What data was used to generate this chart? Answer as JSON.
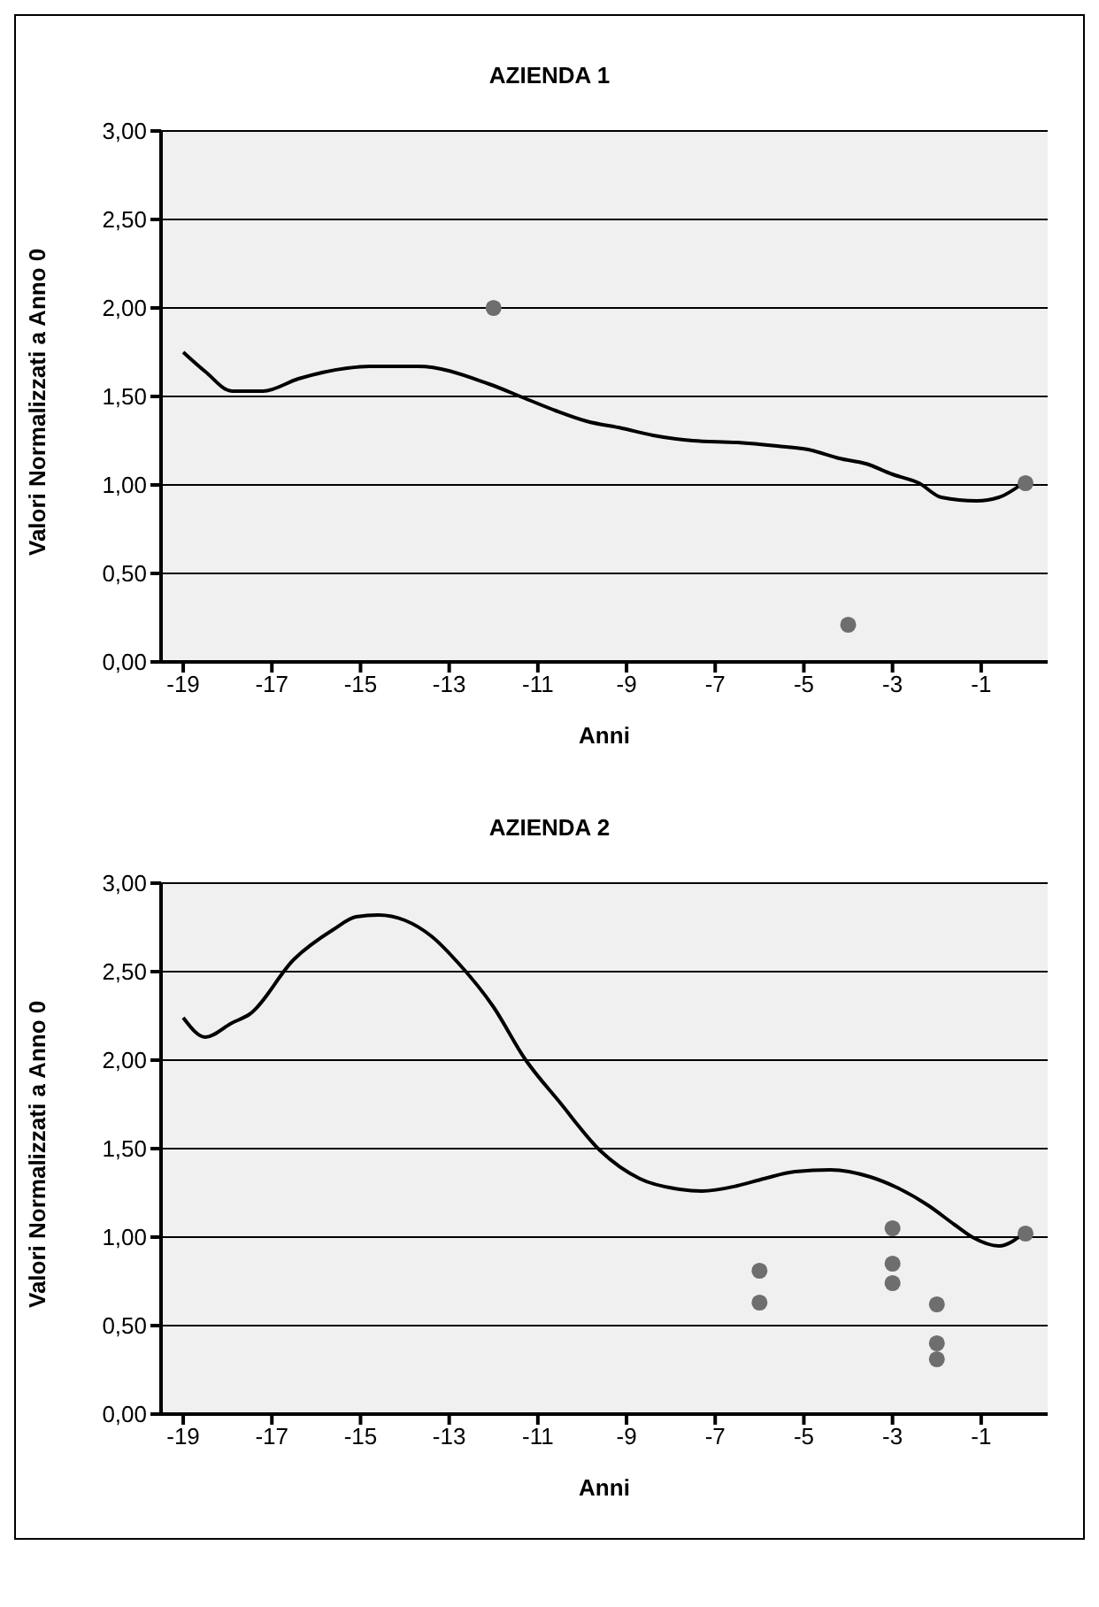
{
  "chart_data": [
    {
      "type": "line",
      "title": "AZIENDA 1",
      "xlabel": "Anni",
      "ylabel": "Valori Normalizzati a Anno 0",
      "xlim": [
        -19.5,
        0.5
      ],
      "xticks": [
        -19,
        -17,
        -15,
        -13,
        -11,
        -9,
        -7,
        -5,
        -3,
        -1
      ],
      "ylim": [
        0,
        3
      ],
      "yticks": [
        {
          "value": 0,
          "label": "0,00"
        },
        {
          "value": 0.5,
          "label": "0,50"
        },
        {
          "value": 1,
          "label": "1,00"
        },
        {
          "value": 1.5,
          "label": "1,50"
        },
        {
          "value": 2,
          "label": "2,00"
        },
        {
          "value": 2.5,
          "label": "2,50"
        },
        {
          "value": 3,
          "label": "3,00"
        }
      ],
      "grid": "y",
      "series": [
        {
          "color": "#000000",
          "marker": "none",
          "x": [
            -19.0,
            -18.5,
            -17.9,
            -17.2,
            -16.4,
            -15.3,
            -14.8,
            -13.7,
            -12.1,
            -11.3,
            -10.6,
            -9.9,
            -9.1,
            -8.4,
            -7.5,
            -6.5,
            -5.6,
            -4.9,
            -4.2,
            -3.6,
            -3.0,
            -2.4,
            -1.9,
            -1.1,
            -0.6,
            0
          ],
          "values": [
            1.75,
            1.64,
            1.53,
            1.53,
            1.6,
            1.66,
            1.67,
            1.67,
            1.57,
            1.49,
            1.42,
            1.36,
            1.32,
            1.28,
            1.25,
            1.24,
            1.22,
            1.2,
            1.15,
            1.12,
            1.06,
            1.01,
            0.93,
            0.91,
            0.93,
            1.02
          ]
        },
        {
          "type": "scatter",
          "color": "#6e6e6e",
          "marker": "circle",
          "x": [
            -12,
            -4,
            0
          ],
          "values": [
            2.0,
            0.21,
            1.01
          ]
        }
      ]
    },
    {
      "type": "line",
      "title": "AZIENDA 2",
      "xlabel": "Anni",
      "ylabel": "Valori Normalizzati a Anno 0",
      "xlim": [
        -19.5,
        0.5
      ],
      "xticks": [
        -19,
        -17,
        -15,
        -13,
        -11,
        -9,
        -7,
        -5,
        -3,
        -1
      ],
      "ylim": [
        0,
        3
      ],
      "yticks": [
        {
          "value": 0,
          "label": "0,00"
        },
        {
          "value": 0.5,
          "label": "0,50"
        },
        {
          "value": 1,
          "label": "1,00"
        },
        {
          "value": 1.5,
          "label": "1,50"
        },
        {
          "value": 2,
          "label": "2,00"
        },
        {
          "value": 2.5,
          "label": "2,50"
        },
        {
          "value": 3,
          "label": "3,00"
        }
      ],
      "grid": "y",
      "series": [
        {
          "color": "#000000",
          "marker": "none",
          "x": [
            -19.0,
            -18.5,
            -17.9,
            -17.5,
            -16.5,
            -15.6,
            -15.1,
            -14.6,
            -14.0,
            -13.4,
            -12.8,
            -12.0,
            -11.3,
            -10.5,
            -9.6,
            -8.7,
            -7.8,
            -7.3,
            -6.5,
            -5.9,
            -5.2,
            -4.4,
            -3.5,
            -2.9,
            -2.2,
            -1.6,
            -1.2,
            -0.6,
            0
          ],
          "values": [
            2.24,
            2.13,
            2.21,
            2.26,
            2.57,
            2.74,
            2.81,
            2.82,
            2.79,
            2.7,
            2.55,
            2.3,
            2.01,
            1.76,
            1.49,
            1.33,
            1.27,
            1.26,
            1.29,
            1.33,
            1.37,
            1.38,
            1.34,
            1.28,
            1.18,
            1.07,
            1.0,
            0.95,
            1.03
          ]
        },
        {
          "type": "scatter",
          "color": "#6e6e6e",
          "marker": "circle",
          "x": [
            -6,
            -6,
            -3,
            -3,
            -3,
            -2,
            -2,
            -2,
            0
          ],
          "values": [
            0.81,
            0.63,
            1.05,
            0.85,
            0.74,
            0.62,
            0.4,
            0.31,
            1.02
          ]
        }
      ]
    }
  ]
}
